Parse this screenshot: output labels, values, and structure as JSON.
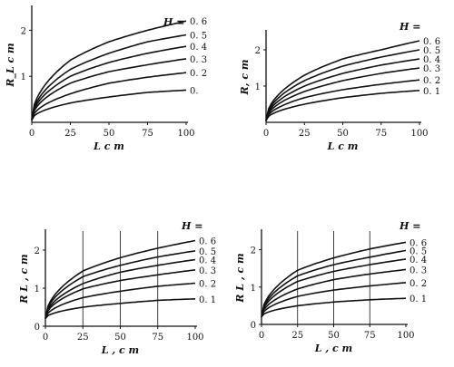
{
  "chart_data": [
    {
      "type": "line",
      "xlabel": "L   c m",
      "ylabel": "R_L c m",
      "legend_title": "H =",
      "xlim": [
        0,
        100
      ],
      "ylim": [
        0,
        2.5
      ],
      "xticks": [
        "0",
        "25",
        "50",
        "75",
        "100"
      ],
      "yticks": [
        "1",
        "2"
      ],
      "x": [
        0,
        25,
        50,
        75,
        100
      ],
      "vertical_lines": [],
      "series": [
        {
          "name": "0. 6",
          "values": [
            0.05,
            1.35,
            1.75,
            2.0,
            2.2
          ]
        },
        {
          "name": "0. 5",
          "values": [
            0.05,
            1.15,
            1.5,
            1.75,
            1.9
          ]
        },
        {
          "name": "0. 4",
          "values": [
            0.05,
            1.0,
            1.3,
            1.5,
            1.65
          ]
        },
        {
          "name": "0. 3",
          "values": [
            0.05,
            0.85,
            1.1,
            1.25,
            1.38
          ]
        },
        {
          "name": "0. 2",
          "values": [
            0.05,
            0.62,
            0.85,
            0.98,
            1.08
          ]
        },
        {
          "name": "0.",
          "values": [
            0.05,
            0.42,
            0.55,
            0.65,
            0.7
          ]
        }
      ]
    },
    {
      "type": "line",
      "xlabel": "L   c m",
      "ylabel": "R, c m",
      "legend_title": "H =",
      "xlim": [
        0,
        100
      ],
      "ylim": [
        0,
        2.5
      ],
      "xticks": [
        "0",
        "25",
        "50",
        "75",
        "100"
      ],
      "yticks": [
        "1",
        "2"
      ],
      "x": [
        0,
        25,
        50,
        75,
        100
      ],
      "vertical_lines": [],
      "series": [
        {
          "name": "0. 6",
          "values": [
            0.05,
            1.3,
            1.75,
            2.0,
            2.25
          ]
        },
        {
          "name": "0. 5",
          "values": [
            0.05,
            1.15,
            1.55,
            1.8,
            2.0
          ]
        },
        {
          "name": "0. 4",
          "values": [
            0.05,
            1.0,
            1.35,
            1.58,
            1.75
          ]
        },
        {
          "name": "0. 3",
          "values": [
            0.05,
            0.85,
            1.15,
            1.35,
            1.5
          ]
        },
        {
          "name": "0. 2",
          "values": [
            0.05,
            0.68,
            0.9,
            1.05,
            1.17
          ]
        },
        {
          "name": "0. 1",
          "values": [
            0.05,
            0.5,
            0.68,
            0.8,
            0.88
          ]
        }
      ]
    },
    {
      "type": "line",
      "xlabel": "L , c m",
      "ylabel": "R L , c m",
      "legend_title": "H =",
      "xlim": [
        0,
        100
      ],
      "ylim": [
        0,
        2.5
      ],
      "xticks": [
        "0",
        "25",
        "50",
        "75",
        "100"
      ],
      "yticks": [
        "0",
        "1",
        "2"
      ],
      "x": [
        0,
        25,
        50,
        75,
        100
      ],
      "vertical_lines": [
        25,
        50,
        75
      ],
      "series": [
        {
          "name": "0. 6",
          "values": [
            0.2,
            1.45,
            1.8,
            2.05,
            2.25
          ]
        },
        {
          "name": "0. 5",
          "values": [
            0.2,
            1.3,
            1.6,
            1.82,
            1.98
          ]
        },
        {
          "name": "0. 4",
          "values": [
            0.2,
            1.12,
            1.42,
            1.6,
            1.75
          ]
        },
        {
          "name": "0. 3",
          "values": [
            0.2,
            0.98,
            1.2,
            1.35,
            1.48
          ]
        },
        {
          "name": "0. 2",
          "values": [
            0.2,
            0.75,
            0.92,
            1.05,
            1.13
          ]
        },
        {
          "name": "0. 1",
          "values": [
            0.2,
            0.5,
            0.6,
            0.68,
            0.72
          ]
        }
      ]
    },
    {
      "type": "line",
      "xlabel": "L , c m",
      "ylabel": "R L , c m",
      "legend_title": "H =",
      "xlim": [
        0,
        100
      ],
      "ylim": [
        0,
        2.5
      ],
      "xticks": [
        "0",
        "25",
        "50",
        "75",
        "100"
      ],
      "yticks": [
        "0",
        "1",
        "2"
      ],
      "x": [
        0,
        25,
        50,
        75,
        100
      ],
      "vertical_lines": [
        25,
        50,
        75
      ],
      "series": [
        {
          "name": "0. 6",
          "values": [
            0.2,
            1.45,
            1.78,
            2.02,
            2.2
          ]
        },
        {
          "name": "0. 5",
          "values": [
            0.2,
            1.3,
            1.6,
            1.8,
            1.98
          ]
        },
        {
          "name": "0. 4",
          "values": [
            0.2,
            1.15,
            1.42,
            1.6,
            1.75
          ]
        },
        {
          "name": "0. 3",
          "values": [
            0.2,
            0.95,
            1.2,
            1.35,
            1.47
          ]
        },
        {
          "name": "0. 2",
          "values": [
            0.2,
            0.75,
            0.92,
            1.03,
            1.12
          ]
        },
        {
          "name": "0. 1",
          "values": [
            0.2,
            0.5,
            0.6,
            0.66,
            0.7
          ]
        }
      ]
    }
  ]
}
